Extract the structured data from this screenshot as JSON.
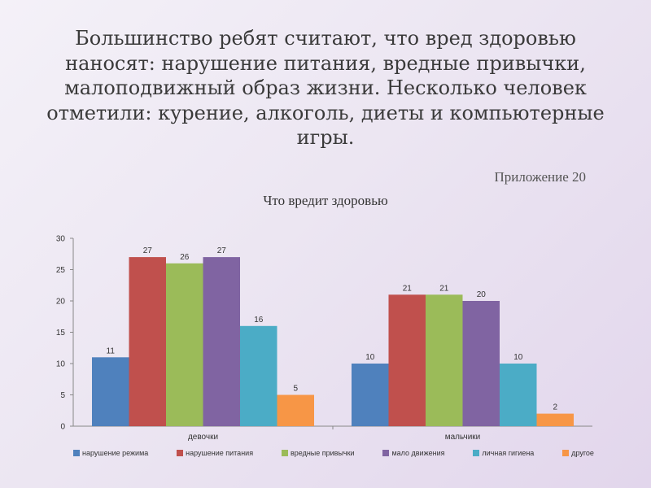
{
  "slide": {
    "heading": "Большинство ребят считают, что вред здоровью наносят: нарушение питания, вредные привычки, малоподвижный образ жизни. Несколько человек отметили: курение, алкоголь, диеты и компьютерные игры.",
    "appendix": "Приложение 20"
  },
  "chart_data": {
    "type": "bar",
    "title": "Что вредит здоровью",
    "categories": [
      "девочки",
      "мальчики"
    ],
    "series": [
      {
        "name": "нарушение режима",
        "color": "#4F81BD",
        "values": [
          11,
          10
        ]
      },
      {
        "name": "нарушение питания",
        "color": "#C0504D",
        "values": [
          27,
          21
        ]
      },
      {
        "name": "вредные привычки",
        "color": "#9BBB59",
        "values": [
          26,
          21
        ]
      },
      {
        "name": "мало движения",
        "color": "#8064A2",
        "values": [
          27,
          20
        ]
      },
      {
        "name": "личная гигиена",
        "color": "#4BACC6",
        "values": [
          16,
          10
        ]
      },
      {
        "name": "другое",
        "color": "#F79646",
        "values": [
          5,
          2
        ]
      }
    ],
    "ylim": [
      0,
      30
    ],
    "yticks": [
      0,
      5,
      10,
      15,
      20,
      25,
      30
    ],
    "legend_position": "bottom",
    "grid": false
  }
}
